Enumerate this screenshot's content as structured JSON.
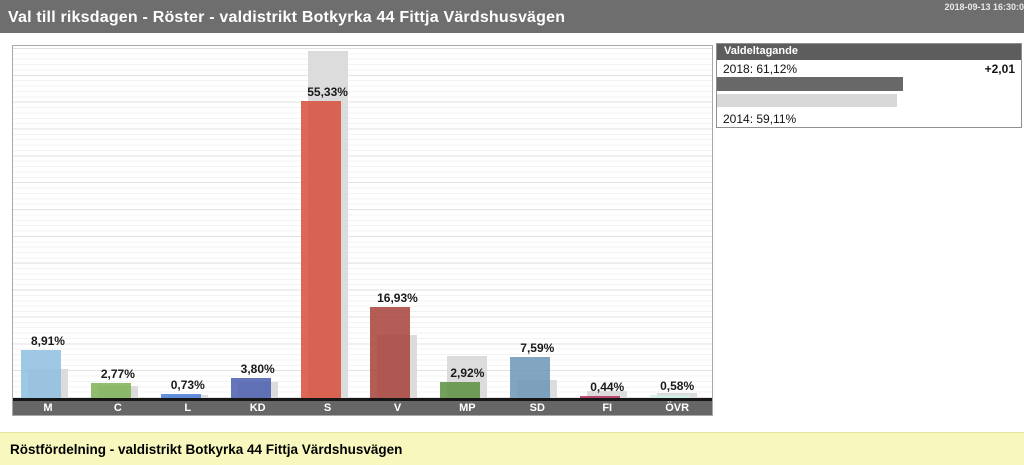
{
  "header": {
    "title": "Val till riksdagen - Röster - valdistrikt Botkyrka 44 Fittja Värdshusvägen",
    "timestamp": "2018-09-13 16:30:0"
  },
  "turnout_panel": {
    "title": "Valdeltagande",
    "row_2018": "2018: 61,12%",
    "change": "+2,01",
    "row_2014": "2014: 59,11%",
    "bar_2018_pct": 61.12,
    "bar_2014_pct": 59.11,
    "bar_2018_color": "#686868",
    "bar_2014_color": "#D8D8D8"
  },
  "footer": {
    "title": "Röstfördelning - valdistrikt Botkyrka 44 Fittja Värdshusvägen"
  },
  "chart_data": {
    "type": "bar",
    "title": "Röstfördelning - valdistrikt Botkyrka 44 Fittja Värdshusvägen",
    "categories": [
      "M",
      "C",
      "L",
      "KD",
      "S",
      "V",
      "MP",
      "SD",
      "FI",
      "ÖVR"
    ],
    "series": [
      {
        "name": "2018",
        "values": [
          8.91,
          2.77,
          0.73,
          3.8,
          55.33,
          16.93,
          2.92,
          7.59,
          0.44,
          0.58
        ],
        "labels": [
          "8,91%",
          "2,77%",
          "0,73%",
          "3,80%",
          "55,33%",
          "16,93%",
          "2,92%",
          "7,59%",
          "0,44%",
          "0,58%"
        ],
        "colors": [
          "#8FBFE0",
          "#7FB356",
          "#4D7FD6",
          "#4A60AD",
          "#D94F3D",
          "#A8423B",
          "#5C9141",
          "#6E96B8",
          "#B52D62",
          "#CFF0E8"
        ]
      },
      {
        "name": "2014_estimated_from_gray_bars",
        "values": [
          5.4,
          2.3,
          0.5,
          3.0,
          64.6,
          11.7,
          7.8,
          3.4,
          1.3,
          0.9
        ],
        "color": "#DCDCDC"
      }
    ],
    "ylim": [
      0,
      65.6
    ],
    "grid": {
      "minor_step_pct": 1,
      "major_step_pct": 5
    },
    "value_labels": "above current-year bar",
    "legend": "none"
  }
}
